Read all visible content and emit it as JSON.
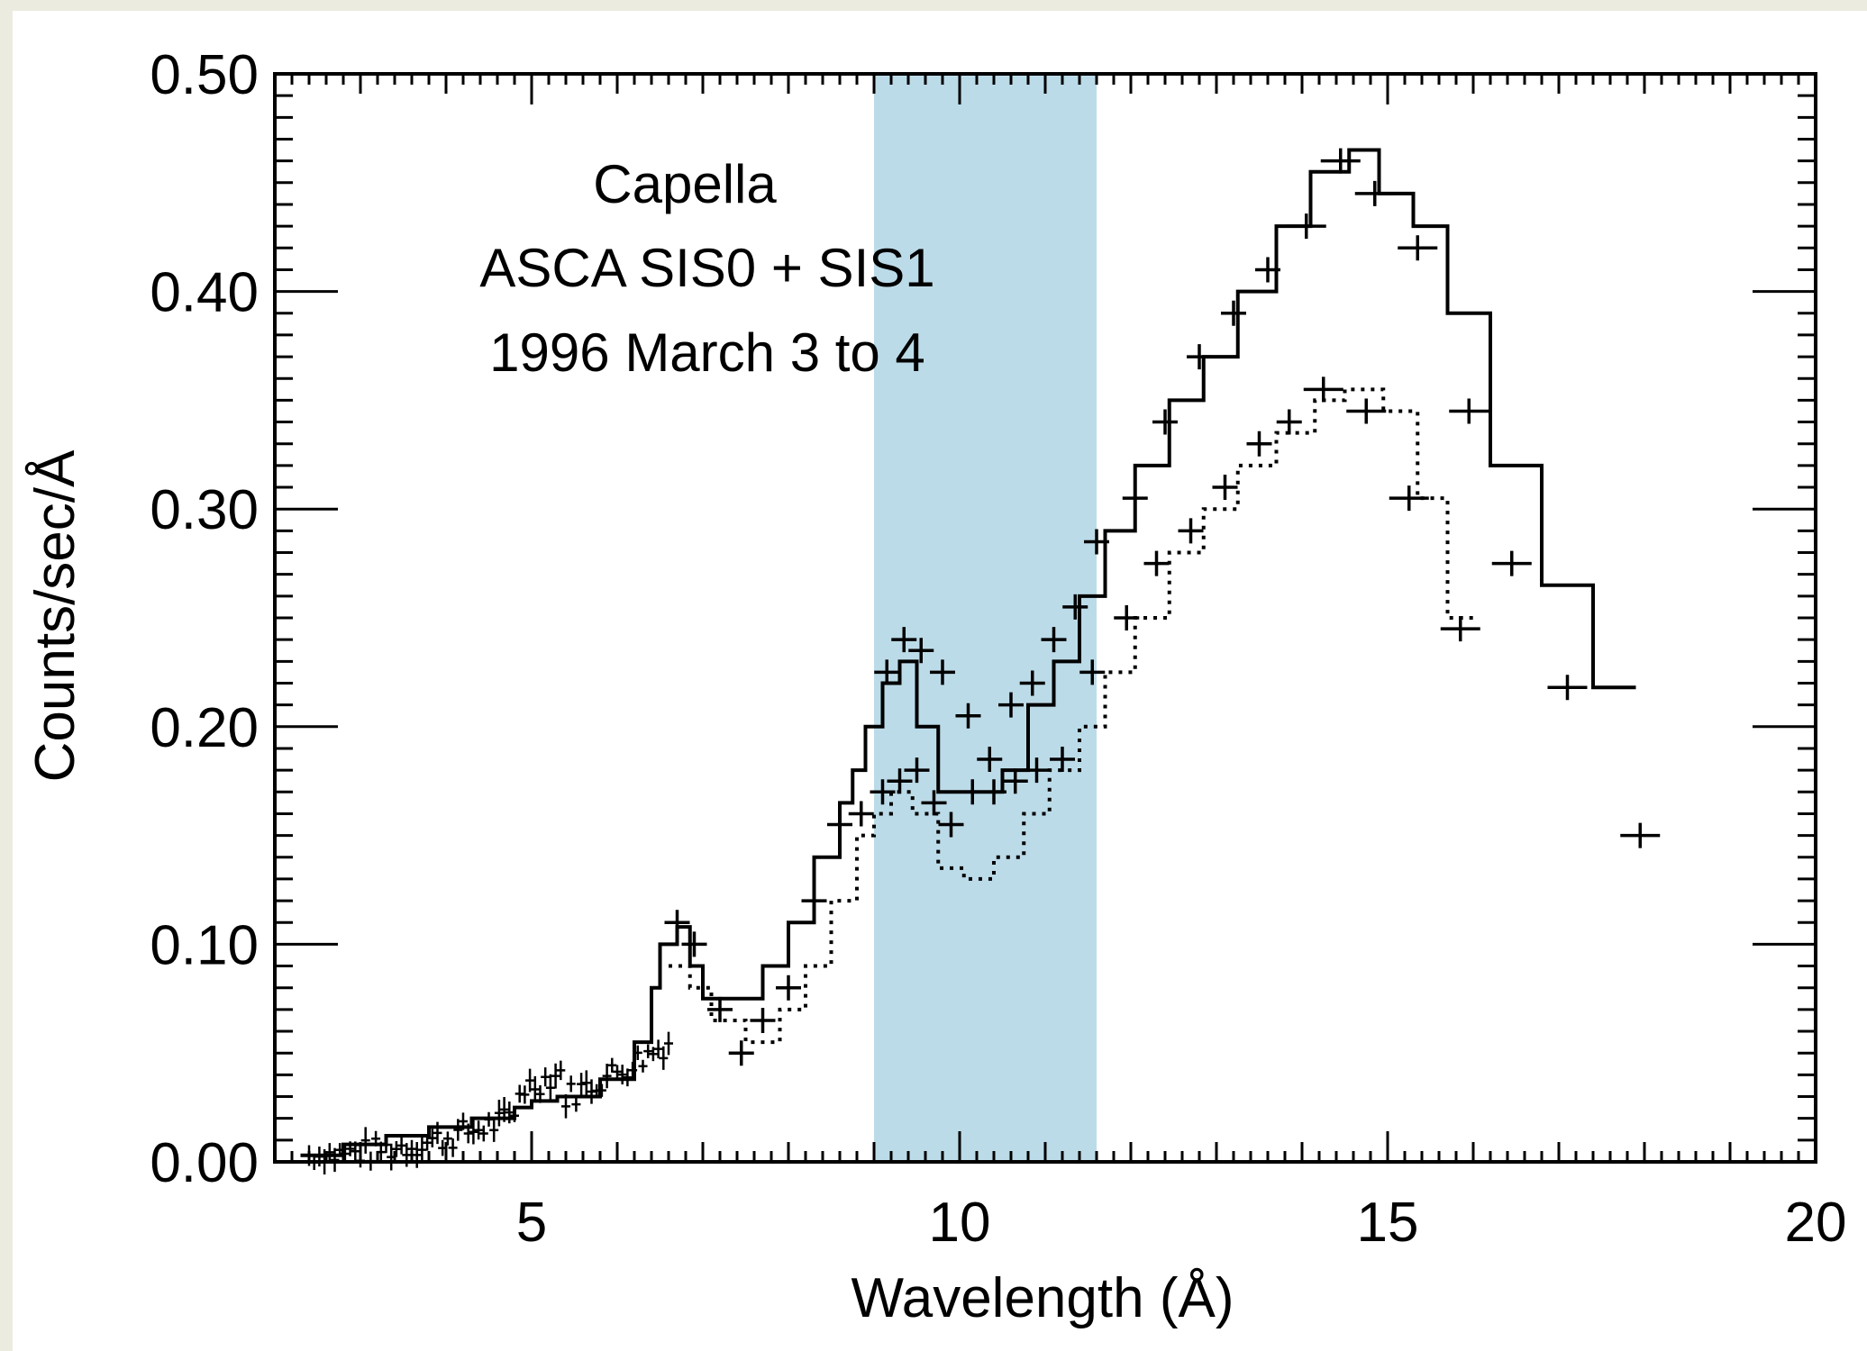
{
  "colors": {
    "background_border": "#ecebe0",
    "plot_background": "#ffffff",
    "highlight_band": "#bcdbe8",
    "ink": "#000000"
  },
  "chart_data": {
    "type": "line",
    "xlabel": "Wavelength (Å)",
    "ylabel": "Counts/sec/Å",
    "xlim": [
      2,
      20
    ],
    "ylim": [
      0,
      0.5
    ],
    "x_ticks": [
      5,
      10,
      15,
      20
    ],
    "x_tick_labels": [
      "5",
      "10",
      "15",
      "20"
    ],
    "y_ticks": [
      0.0,
      0.1,
      0.2,
      0.3,
      0.4,
      0.5
    ],
    "y_tick_labels": [
      "0.00",
      "0.10",
      "0.20",
      "0.30",
      "0.40",
      "0.50"
    ],
    "grid": false,
    "annotations": [
      "Capella",
      "ASCA SIS0 + SIS1",
      "1996 March 3 to 4"
    ],
    "highlight_band": {
      "x_from": 9.0,
      "x_to": 11.6
    },
    "series": [
      {
        "style": "histogram-solid",
        "x": [
          2.3,
          2.8,
          3.3,
          3.8,
          4.3,
          4.8,
          5.0,
          5.3,
          5.8,
          6.2,
          6.4,
          6.5,
          6.7,
          6.85,
          7.0,
          7.3,
          7.7,
          8.0,
          8.3,
          8.6,
          8.75,
          8.9,
          9.1,
          9.3,
          9.5,
          9.75,
          10.25,
          10.5,
          10.8,
          11.1,
          11.4,
          11.7,
          12.05,
          12.45,
          12.85,
          13.25,
          13.7,
          14.1,
          14.55,
          14.9,
          15.3,
          15.7,
          16.2,
          16.8,
          17.4
        ],
        "y": [
          0.003,
          0.008,
          0.012,
          0.016,
          0.02,
          0.025,
          0.028,
          0.03,
          0.038,
          0.055,
          0.08,
          0.1,
          0.108,
          0.09,
          0.075,
          0.075,
          0.09,
          0.11,
          0.14,
          0.165,
          0.18,
          0.2,
          0.22,
          0.23,
          0.2,
          0.17,
          0.17,
          0.18,
          0.21,
          0.23,
          0.26,
          0.29,
          0.32,
          0.35,
          0.37,
          0.4,
          0.43,
          0.455,
          0.465,
          0.445,
          0.43,
          0.39,
          0.32,
          0.265,
          0.218
        ],
        "x_end": 17.9
      },
      {
        "style": "histogram-dotted",
        "x": [
          6.6,
          6.85,
          7.1,
          7.5,
          7.9,
          8.2,
          8.5,
          8.8,
          9.0,
          9.2,
          9.45,
          9.75,
          10.05,
          10.4,
          10.75,
          11.05,
          11.4,
          11.7,
          12.05,
          12.45,
          12.85,
          13.25,
          13.7,
          14.15,
          14.5,
          14.95,
          15.35,
          15.7
        ],
        "y": [
          0.09,
          0.08,
          0.065,
          0.055,
          0.07,
          0.09,
          0.12,
          0.15,
          0.16,
          0.17,
          0.16,
          0.135,
          0.13,
          0.14,
          0.16,
          0.18,
          0.2,
          0.225,
          0.25,
          0.28,
          0.3,
          0.32,
          0.335,
          0.35,
          0.355,
          0.345,
          0.305,
          0.25
        ],
        "x_end": 16.0
      }
    ],
    "data_points": [
      {
        "x": 9.15,
        "y": 0.225
      },
      {
        "x": 9.35,
        "y": 0.24
      },
      {
        "x": 9.55,
        "y": 0.235
      },
      {
        "x": 9.8,
        "y": 0.225
      },
      {
        "x": 10.1,
        "y": 0.205
      },
      {
        "x": 10.35,
        "y": 0.185
      },
      {
        "x": 10.6,
        "y": 0.21
      },
      {
        "x": 10.85,
        "y": 0.22
      },
      {
        "x": 11.1,
        "y": 0.24
      },
      {
        "x": 11.35,
        "y": 0.255
      },
      {
        "x": 11.6,
        "y": 0.285
      },
      {
        "x": 12.05,
        "y": 0.305
      },
      {
        "x": 12.4,
        "y": 0.34
      },
      {
        "x": 12.8,
        "y": 0.37
      },
      {
        "x": 13.2,
        "y": 0.39
      },
      {
        "x": 13.6,
        "y": 0.41
      },
      {
        "x": 14.05,
        "y": 0.43
      },
      {
        "x": 14.45,
        "y": 0.46
      },
      {
        "x": 14.85,
        "y": 0.445
      },
      {
        "x": 15.35,
        "y": 0.42
      },
      {
        "x": 15.95,
        "y": 0.345
      },
      {
        "x": 16.45,
        "y": 0.275
      },
      {
        "x": 17.1,
        "y": 0.218
      },
      {
        "x": 17.95,
        "y": 0.15
      },
      {
        "x": 9.1,
        "y": 0.17
      },
      {
        "x": 9.3,
        "y": 0.175
      },
      {
        "x": 9.5,
        "y": 0.18
      },
      {
        "x": 9.7,
        "y": 0.165
      },
      {
        "x": 9.9,
        "y": 0.155
      },
      {
        "x": 10.15,
        "y": 0.17
      },
      {
        "x": 10.4,
        "y": 0.17
      },
      {
        "x": 10.65,
        "y": 0.175
      },
      {
        "x": 10.9,
        "y": 0.18
      },
      {
        "x": 11.2,
        "y": 0.185
      },
      {
        "x": 11.55,
        "y": 0.225
      },
      {
        "x": 11.95,
        "y": 0.25
      },
      {
        "x": 12.3,
        "y": 0.275
      },
      {
        "x": 12.7,
        "y": 0.29
      },
      {
        "x": 13.1,
        "y": 0.31
      },
      {
        "x": 13.5,
        "y": 0.33
      },
      {
        "x": 13.85,
        "y": 0.34
      },
      {
        "x": 14.25,
        "y": 0.355
      },
      {
        "x": 14.75,
        "y": 0.345
      },
      {
        "x": 15.25,
        "y": 0.305
      },
      {
        "x": 15.85,
        "y": 0.245
      },
      {
        "x": 6.7,
        "y": 0.11
      },
      {
        "x": 6.9,
        "y": 0.1
      },
      {
        "x": 7.2,
        "y": 0.07
      },
      {
        "x": 7.45,
        "y": 0.05
      },
      {
        "x": 7.7,
        "y": 0.065
      },
      {
        "x": 8.0,
        "y": 0.08
      },
      {
        "x": 8.3,
        "y": 0.12
      },
      {
        "x": 8.6,
        "y": 0.155
      },
      {
        "x": 8.85,
        "y": 0.16
      }
    ]
  }
}
